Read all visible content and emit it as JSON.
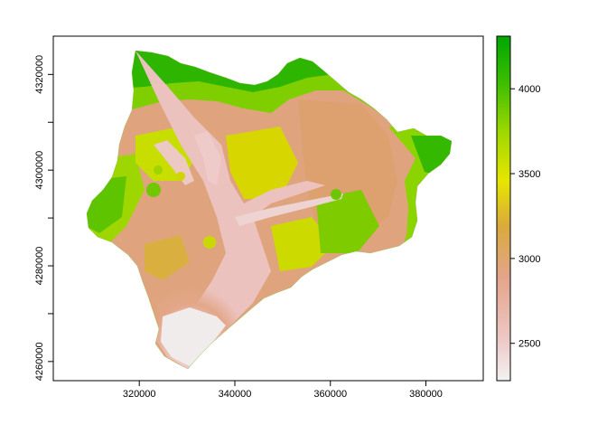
{
  "map": {
    "x_axis": {
      "ticks": [
        "320000",
        "340000",
        "360000",
        "380000"
      ],
      "range": [
        302000,
        392000
      ]
    },
    "y_axis": {
      "ticks": [
        "4260000",
        "4280000",
        "4300000",
        "4320000"
      ],
      "range": [
        4256000,
        4328000
      ]
    },
    "legend": {
      "ticks": [
        "2500",
        "3000",
        "3500",
        "4000"
      ],
      "range": [
        2280,
        4310
      ],
      "placement": "right",
      "colors": [
        "#F2F2F2",
        "#EDBEBC",
        "#E19A7A",
        "#D9AA3B",
        "#E6E600",
        "#9FD800",
        "#3FBF00",
        "#00A600"
      ]
    }
  }
}
